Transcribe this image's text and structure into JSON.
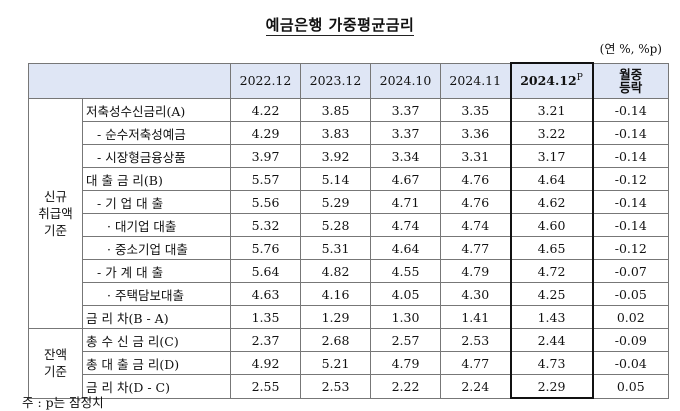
{
  "title": "예금은행 가중평균금리",
  "unit": "(연 %, %p)",
  "columns": [
    "2022.12",
    "2023.12",
    "2024.10",
    "2024.11",
    "2024.12",
    "월중 등락"
  ],
  "highlight_sup": "P",
  "change_line1": "월중",
  "change_line2": "등락",
  "groups": {
    "new": [
      "신규",
      "취급액",
      "기준"
    ],
    "balance": [
      "잔액",
      "기준"
    ]
  },
  "rows_new": [
    {
      "label": "저축성수신금리(A)",
      "values": [
        "4.22",
        "3.85",
        "3.37",
        "3.35",
        "3.21",
        "-0.14"
      ]
    },
    {
      "label": "- 순수저축성예금",
      "values": [
        "4.29",
        "3.83",
        "3.37",
        "3.36",
        "3.22",
        "-0.14"
      ]
    },
    {
      "label": "- 시장형금융상품",
      "values": [
        "3.97",
        "3.92",
        "3.34",
        "3.31",
        "3.17",
        "-0.14"
      ]
    },
    {
      "label": "대 출 금 리(B)",
      "values": [
        "5.57",
        "5.14",
        "4.67",
        "4.76",
        "4.64",
        "-0.12"
      ]
    },
    {
      "label": "- 기 업 대 출",
      "values": [
        "5.56",
        "5.29",
        "4.71",
        "4.76",
        "4.62",
        "-0.14"
      ]
    },
    {
      "label": "· 대기업 대출",
      "values": [
        "5.32",
        "5.28",
        "4.74",
        "4.74",
        "4.60",
        "-0.14"
      ]
    },
    {
      "label": "· 중소기업 대출",
      "values": [
        "5.76",
        "5.31",
        "4.64",
        "4.77",
        "4.65",
        "-0.12"
      ]
    },
    {
      "label": "- 가 계 대 출",
      "values": [
        "5.64",
        "4.82",
        "4.55",
        "4.79",
        "4.72",
        "-0.07"
      ]
    },
    {
      "label": "· 주택담보대출",
      "values": [
        "4.63",
        "4.16",
        "4.05",
        "4.30",
        "4.25",
        "-0.05"
      ]
    },
    {
      "label": "금 리 차(B - A)",
      "values": [
        "1.35",
        "1.29",
        "1.30",
        "1.41",
        "1.43",
        "0.02"
      ]
    }
  ],
  "rows_balance": [
    {
      "label": "총 수 신 금 리(C)",
      "values": [
        "2.37",
        "2.68",
        "2.57",
        "2.53",
        "2.44",
        "-0.09"
      ]
    },
    {
      "label": "총 대 출 금 리(D)",
      "values": [
        "4.92",
        "5.21",
        "4.79",
        "4.77",
        "4.73",
        "-0.04"
      ]
    },
    {
      "label": "금 리 차(D - C)",
      "values": [
        "2.55",
        "2.53",
        "2.22",
        "2.24",
        "2.29",
        "0.05"
      ]
    }
  ],
  "note": "주 : p는 잠정치"
}
